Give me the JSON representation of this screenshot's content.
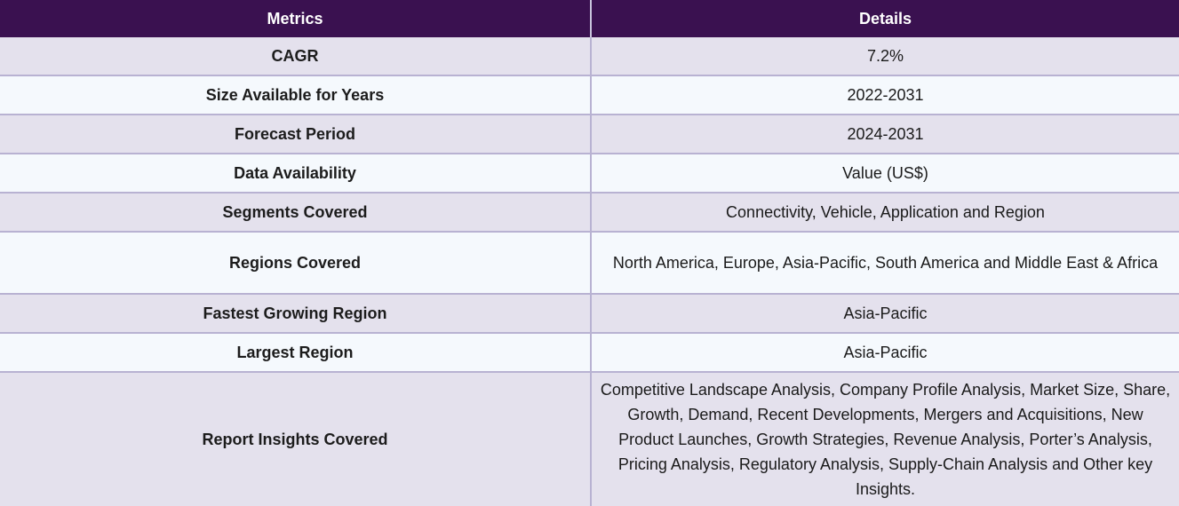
{
  "table": {
    "headers": {
      "metrics": "Metrics",
      "details": "Details"
    },
    "rows": [
      {
        "metric": "CAGR",
        "detail": "7.2%"
      },
      {
        "metric": "Size Available for Years",
        "detail": "2022-2031"
      },
      {
        "metric": "Forecast Period",
        "detail": "2024-2031"
      },
      {
        "metric": "Data Availability",
        "detail": "Value (US$)"
      },
      {
        "metric": "Segments Covered",
        "detail": "Connectivity, Vehicle, Application and Region"
      },
      {
        "metric": "Regions Covered",
        "detail": "North America, Europe, Asia-Pacific, South America and Middle East & Africa"
      },
      {
        "metric": "Fastest Growing Region",
        "detail": "Asia-Pacific"
      },
      {
        "metric": "Largest Region",
        "detail": "Asia-Pacific"
      },
      {
        "metric": "Report Insights Covered",
        "detail": "Competitive Landscape Analysis, Company Profile Analysis, Market Size, Share, Growth, Demand, Recent Developments, Mergers and Acquisitions, New Product Launches, Growth Strategies, Revenue Analysis, Porter’s Analysis, Pricing Analysis, Regulatory Analysis, Supply-Chain Analysis and Other key Insights."
      }
    ]
  },
  "colors": {
    "header_bg": "#3a1150",
    "row_odd_bg": "#e4e1ed",
    "row_even_bg": "#f5f9fd",
    "border": "#b8b2d2"
  }
}
